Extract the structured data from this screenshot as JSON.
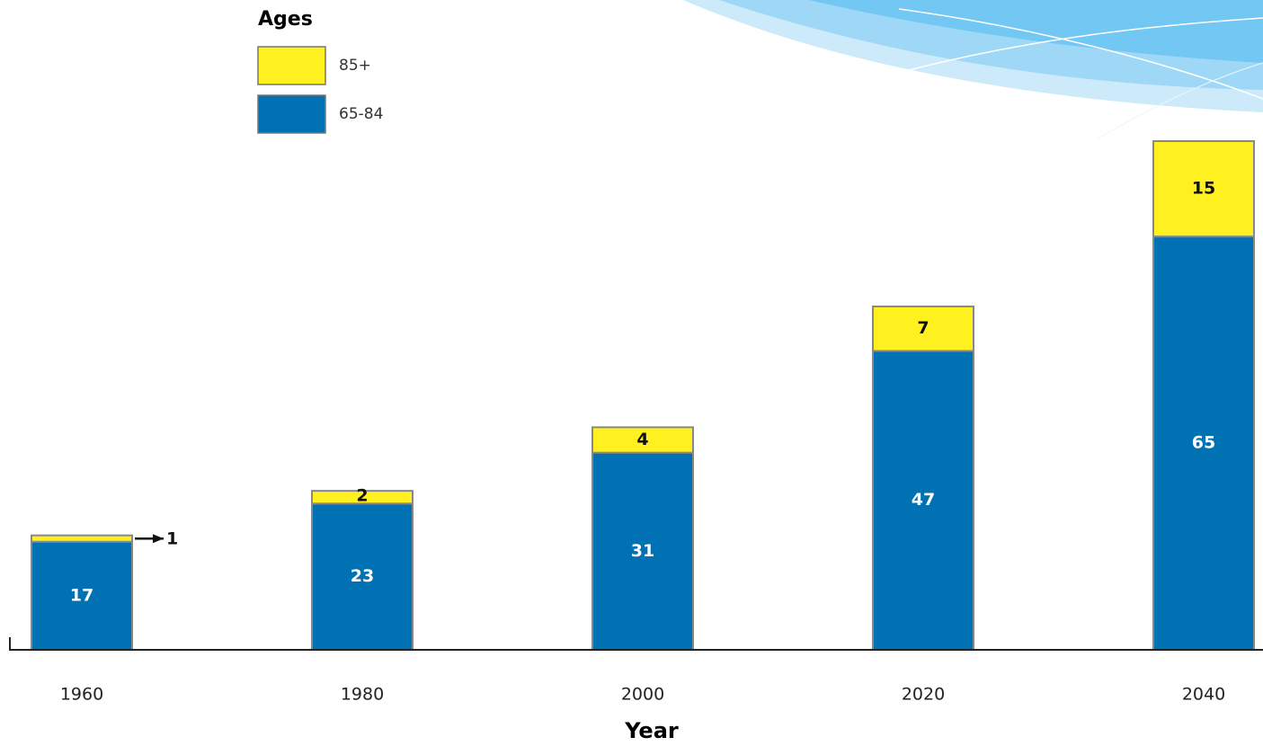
{
  "chart_data": {
    "type": "stacked-bar",
    "legend_title": "Ages",
    "x_label": "Year",
    "categories": [
      "1960",
      "1980",
      "2000",
      "2020",
      "2040"
    ],
    "series": [
      {
        "name": "65-84",
        "color": "#0071b3",
        "label_color": "#ffffff",
        "values": [
          17,
          23,
          31,
          47,
          65
        ]
      },
      {
        "name": "85+",
        "color": "#fff01f",
        "label_color": "#111111",
        "values": [
          1,
          2,
          4,
          7,
          15
        ]
      }
    ],
    "legend": "top-left"
  }
}
